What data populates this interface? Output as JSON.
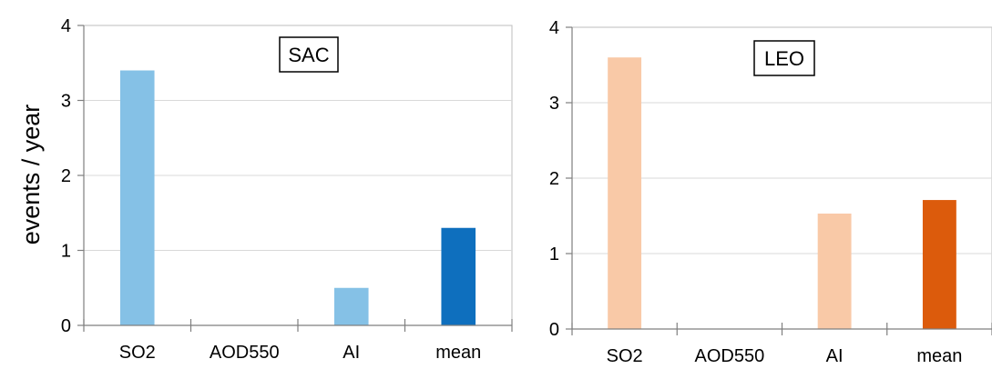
{
  "ylabel": "events / year",
  "chart_data": [
    {
      "type": "bar",
      "panel_label": "SAC",
      "ylabel": "events / year",
      "categories": [
        "SO2",
        "AOD550",
        "AI",
        "mean"
      ],
      "values": [
        3.4,
        0,
        0.5,
        1.3
      ],
      "colors": [
        "#85c1e6",
        "#85c1e6",
        "#85c1e6",
        "#0e6fbe"
      ],
      "ylim": [
        0,
        4
      ],
      "yticks": [
        0,
        1,
        2,
        3,
        4
      ],
      "grid": true
    },
    {
      "type": "bar",
      "panel_label": "LEO",
      "ylabel": "",
      "categories": [
        "SO2",
        "AOD550",
        "AI",
        "mean"
      ],
      "values": [
        3.6,
        0,
        1.53,
        1.71
      ],
      "colors": [
        "#f9c9a7",
        "#f9c9a7",
        "#f9c9a7",
        "#dc5b0c"
      ],
      "ylim": [
        0,
        4
      ],
      "yticks": [
        0,
        1,
        2,
        3,
        4
      ],
      "grid": true
    }
  ]
}
